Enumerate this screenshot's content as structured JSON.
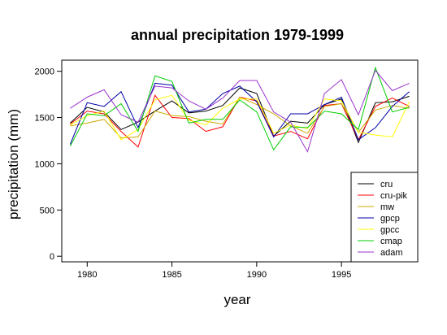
{
  "chart_data": {
    "type": "line",
    "title": "annual precipitation 1979-1999",
    "xlabel": "year",
    "ylabel": "precipitation (mm)",
    "xlim": [
      1978.5,
      1999.5
    ],
    "ylim": [
      -60,
      2120
    ],
    "x_ticks": [
      1980,
      1985,
      1990,
      1995
    ],
    "y_ticks": [
      0,
      500,
      1000,
      1500,
      2000
    ],
    "legend_position": "bottom-right",
    "x": [
      1979,
      1980,
      1981,
      1982,
      1983,
      1984,
      1985,
      1986,
      1987,
      1988,
      1989,
      1990,
      1991,
      1992,
      1993,
      1994,
      1995,
      1996,
      1997,
      1998,
      1999
    ],
    "series": [
      {
        "name": "cru",
        "color": "#000000",
        "values": [
          1440,
          1610,
          1560,
          1370,
          1450,
          1570,
          1680,
          1550,
          1570,
          1630,
          1820,
          1760,
          1300,
          1460,
          1440,
          1640,
          1700,
          1230,
          1660,
          1670,
          1730
        ]
      },
      {
        "name": "cru-pik",
        "color": "#ff0000",
        "values": [
          1430,
          1570,
          1540,
          1350,
          1180,
          1740,
          1500,
          1490,
          1350,
          1400,
          1720,
          1680,
          1300,
          1350,
          1270,
          1630,
          1650,
          1260,
          1620,
          1710,
          1620
        ]
      },
      {
        "name": "mw",
        "color": "#ccaa00",
        "values": [
          1410,
          1440,
          1480,
          1280,
          1290,
          1570,
          1520,
          1510,
          1460,
          1430,
          1720,
          1640,
          1540,
          1410,
          1330,
          1620,
          1650,
          1340,
          1580,
          1630,
          1600
        ]
      },
      {
        "name": "gpcp",
        "color": "#0000aa",
        "values": [
          1210,
          1660,
          1620,
          1780,
          1390,
          1870,
          1850,
          1560,
          1590,
          1760,
          1840,
          1670,
          1290,
          1540,
          1540,
          1640,
          1720,
          1260,
          1390,
          1620,
          1780
        ]
      },
      {
        "name": "gpcc",
        "color": "#ffff00",
        "values": [
          1420,
          1520,
          1570,
          1260,
          1370,
          1690,
          1740,
          1470,
          1420,
          1600,
          1700,
          1700,
          1330,
          1420,
          1380,
          1700,
          1680,
          1340,
          1310,
          1290,
          1670
        ]
      },
      {
        "name": "cmap",
        "color": "#00cc00",
        "values": [
          1190,
          1540,
          1520,
          1650,
          1350,
          1950,
          1890,
          1440,
          1480,
          1480,
          1690,
          1560,
          1150,
          1400,
          1390,
          1570,
          1540,
          1370,
          2040,
          1560,
          1610
        ]
      },
      {
        "name": "adam",
        "color": "#9933cc",
        "values": [
          1600,
          1720,
          1800,
          1530,
          1450,
          1840,
          1820,
          1680,
          1590,
          1710,
          1900,
          1900,
          1560,
          1450,
          1130,
          1760,
          1910,
          1530,
          2010,
          1790,
          1870
        ]
      }
    ]
  }
}
